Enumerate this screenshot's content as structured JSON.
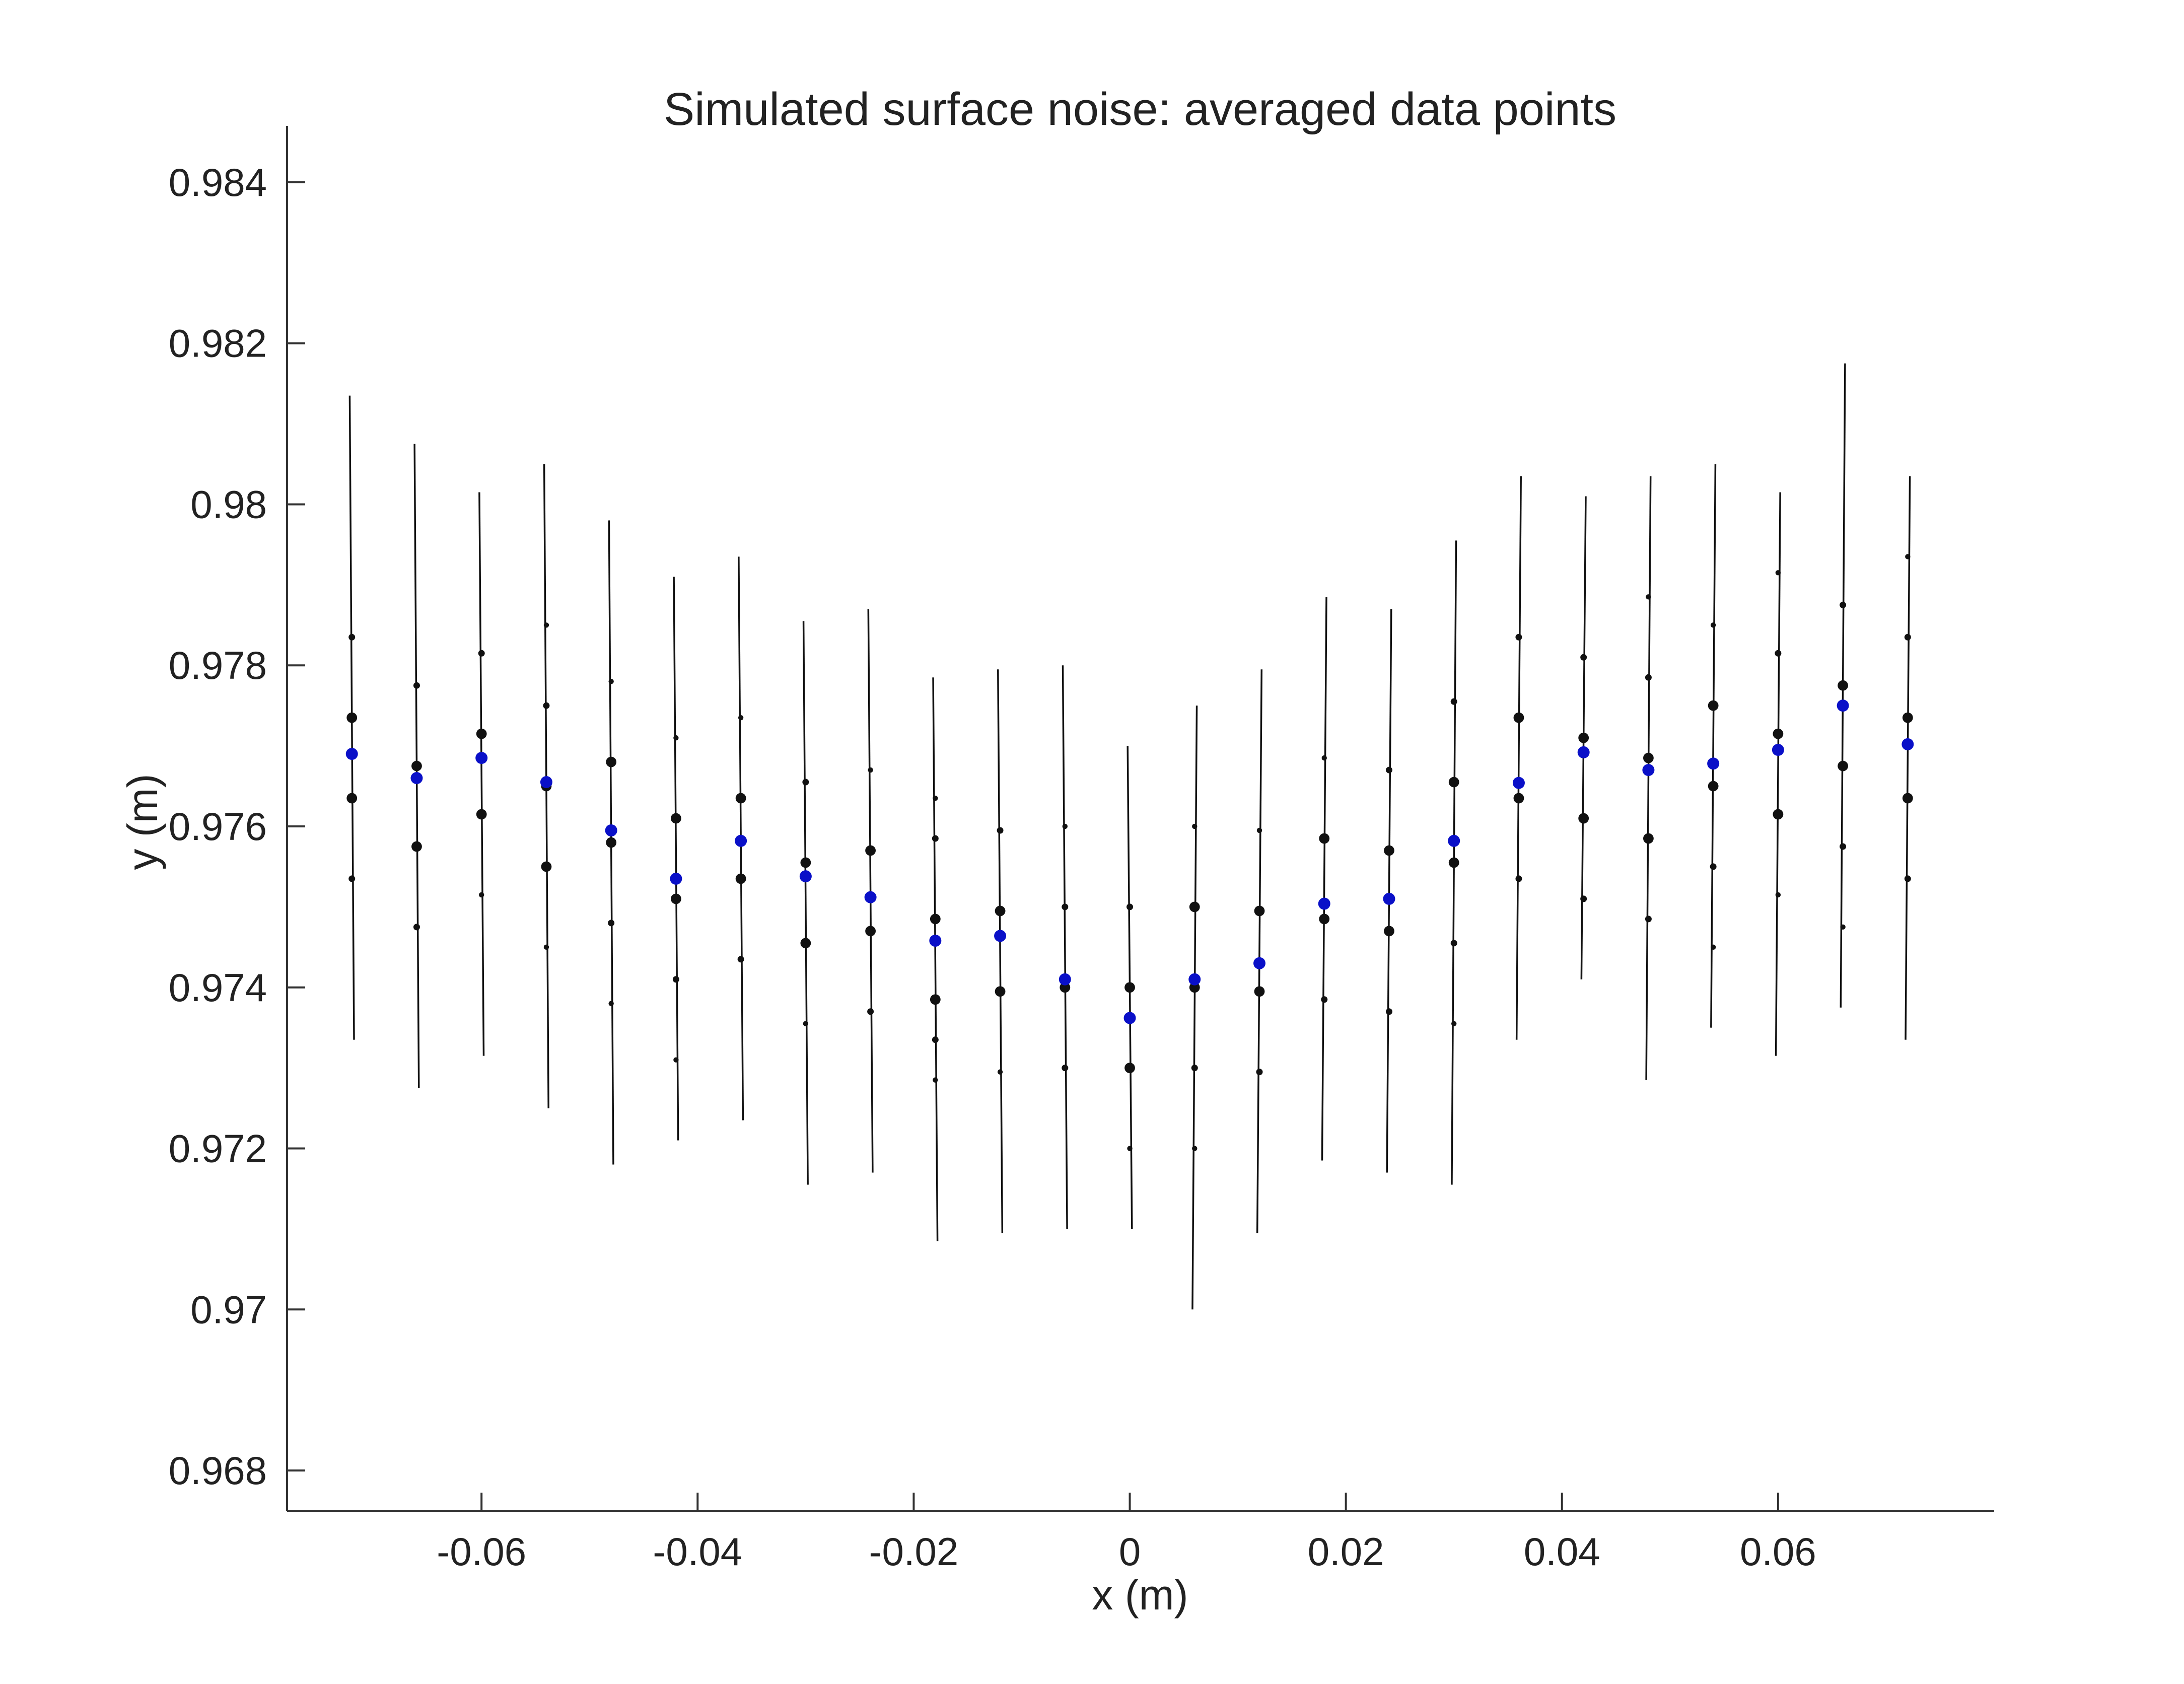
{
  "chart_data": {
    "type": "scatter",
    "title": "Simulated surface noise: averaged data points",
    "xlabel": "x (m)",
    "ylabel": "y (m)",
    "xlim": [
      -0.078,
      0.08
    ],
    "ylim": [
      0.9675,
      0.9847
    ],
    "xticks": [
      -0.06,
      -0.04,
      -0.02,
      0,
      0.02,
      0.04,
      0.06
    ],
    "xtick_labels": [
      "-0.06",
      "-0.04",
      "-0.02",
      "0",
      "0.02",
      "0.04",
      "0.06"
    ],
    "yticks": [
      0.968,
      0.97,
      0.972,
      0.974,
      0.976,
      0.978,
      0.98,
      0.982,
      0.984
    ],
    "ytick_labels": [
      "0.968",
      "0.97",
      "0.972",
      "0.974",
      "0.976",
      "0.978",
      "0.98",
      "0.982",
      "0.984"
    ],
    "grid": false,
    "colors": {
      "samples": "#111111",
      "averaged": "#0a10c8"
    },
    "series": [
      {
        "role": "ray-lines",
        "lines": [
          {
            "x0": -0.0722,
            "y0": 0.98135,
            "x1": -0.0718,
            "y1": 0.97335
          },
          {
            "x0": -0.0662,
            "y0": 0.98075,
            "x1": -0.0658,
            "y1": 0.97275
          },
          {
            "x0": -0.0602,
            "y0": 0.98015,
            "x1": -0.0598,
            "y1": 0.97315
          },
          {
            "x0": -0.0542,
            "y0": 0.9805,
            "x1": -0.0538,
            "y1": 0.9725
          },
          {
            "x0": -0.0482,
            "y0": 0.9798,
            "x1": -0.0478,
            "y1": 0.9718
          },
          {
            "x0": -0.0422,
            "y0": 0.9791,
            "x1": -0.0418,
            "y1": 0.9721
          },
          {
            "x0": -0.0362,
            "y0": 0.97935,
            "x1": -0.0358,
            "y1": 0.97235
          },
          {
            "x0": -0.0302,
            "y0": 0.97855,
            "x1": -0.0298,
            "y1": 0.97155
          },
          {
            "x0": -0.0242,
            "y0": 0.9787,
            "x1": -0.0238,
            "y1": 0.9717
          },
          {
            "x0": -0.0182,
            "y0": 0.97785,
            "x1": -0.0178,
            "y1": 0.97085
          },
          {
            "x0": -0.0122,
            "y0": 0.97795,
            "x1": -0.0118,
            "y1": 0.97095
          },
          {
            "x0": -0.0062,
            "y0": 0.978,
            "x1": -0.0058,
            "y1": 0.971
          },
          {
            "x0": -0.0002,
            "y0": 0.977,
            "x1": 0.0002,
            "y1": 0.971
          },
          {
            "x0": 0.0062,
            "y0": 0.9775,
            "x1": 0.0058,
            "y1": 0.97
          },
          {
            "x0": 0.0122,
            "y0": 0.97795,
            "x1": 0.0118,
            "y1": 0.97095
          },
          {
            "x0": 0.0182,
            "y0": 0.97885,
            "x1": 0.0178,
            "y1": 0.97185
          },
          {
            "x0": 0.0242,
            "y0": 0.9787,
            "x1": 0.0238,
            "y1": 0.9717
          },
          {
            "x0": 0.0302,
            "y0": 0.97955,
            "x1": 0.0298,
            "y1": 0.97155
          },
          {
            "x0": 0.0362,
            "y0": 0.98035,
            "x1": 0.0358,
            "y1": 0.97335
          },
          {
            "x0": 0.0422,
            "y0": 0.9801,
            "x1": 0.0418,
            "y1": 0.9741
          },
          {
            "x0": 0.0482,
            "y0": 0.98035,
            "x1": 0.0478,
            "y1": 0.97285
          },
          {
            "x0": 0.0542,
            "y0": 0.9805,
            "x1": 0.0538,
            "y1": 0.9735
          },
          {
            "x0": 0.0602,
            "y0": 0.98015,
            "x1": 0.0598,
            "y1": 0.97315
          },
          {
            "x0": 0.0662,
            "y0": 0.98175,
            "x1": 0.0658,
            "y1": 0.97375
          },
          {
            "x0": 0.0722,
            "y0": 0.98035,
            "x1": 0.0718,
            "y1": 0.97335
          }
        ]
      },
      {
        "role": "samples",
        "points": [
          {
            "x": -0.072,
            "y": 0.97835,
            "s": 5
          },
          {
            "x": -0.072,
            "y": 0.97735,
            "s": 8
          },
          {
            "x": -0.072,
            "y": 0.97635,
            "s": 8
          },
          {
            "x": -0.072,
            "y": 0.97535,
            "s": 5
          },
          {
            "x": -0.066,
            "y": 0.97775,
            "s": 5
          },
          {
            "x": -0.066,
            "y": 0.97675,
            "s": 8
          },
          {
            "x": -0.066,
            "y": 0.97575,
            "s": 8
          },
          {
            "x": -0.066,
            "y": 0.97475,
            "s": 5
          },
          {
            "x": -0.06,
            "y": 0.97815,
            "s": 5
          },
          {
            "x": -0.06,
            "y": 0.97715,
            "s": 8
          },
          {
            "x": -0.06,
            "y": 0.97615,
            "s": 8
          },
          {
            "x": -0.06,
            "y": 0.97515,
            "s": 4
          },
          {
            "x": -0.054,
            "y": 0.9785,
            "s": 4
          },
          {
            "x": -0.054,
            "y": 0.9775,
            "s": 5
          },
          {
            "x": -0.054,
            "y": 0.9765,
            "s": 8
          },
          {
            "x": -0.054,
            "y": 0.9755,
            "s": 8
          },
          {
            "x": -0.054,
            "y": 0.9745,
            "s": 4
          },
          {
            "x": -0.048,
            "y": 0.9778,
            "s": 4
          },
          {
            "x": -0.048,
            "y": 0.9768,
            "s": 8
          },
          {
            "x": -0.048,
            "y": 0.9758,
            "s": 8
          },
          {
            "x": -0.048,
            "y": 0.9748,
            "s": 5
          },
          {
            "x": -0.048,
            "y": 0.9738,
            "s": 4
          },
          {
            "x": -0.042,
            "y": 0.9771,
            "s": 4
          },
          {
            "x": -0.042,
            "y": 0.9761,
            "s": 8
          },
          {
            "x": -0.042,
            "y": 0.9751,
            "s": 8
          },
          {
            "x": -0.042,
            "y": 0.9741,
            "s": 5
          },
          {
            "x": -0.042,
            "y": 0.9731,
            "s": 4
          },
          {
            "x": -0.036,
            "y": 0.97735,
            "s": 4
          },
          {
            "x": -0.036,
            "y": 0.97635,
            "s": 8
          },
          {
            "x": -0.036,
            "y": 0.97535,
            "s": 8
          },
          {
            "x": -0.036,
            "y": 0.97435,
            "s": 5
          },
          {
            "x": -0.03,
            "y": 0.97655,
            "s": 5
          },
          {
            "x": -0.03,
            "y": 0.97555,
            "s": 8
          },
          {
            "x": -0.03,
            "y": 0.97455,
            "s": 8
          },
          {
            "x": -0.03,
            "y": 0.97355,
            "s": 4
          },
          {
            "x": -0.024,
            "y": 0.9767,
            "s": 4
          },
          {
            "x": -0.024,
            "y": 0.9757,
            "s": 8
          },
          {
            "x": -0.024,
            "y": 0.9747,
            "s": 8
          },
          {
            "x": -0.024,
            "y": 0.9737,
            "s": 5
          },
          {
            "x": -0.018,
            "y": 0.97635,
            "s": 4
          },
          {
            "x": -0.018,
            "y": 0.97585,
            "s": 5
          },
          {
            "x": -0.018,
            "y": 0.97485,
            "s": 8
          },
          {
            "x": -0.018,
            "y": 0.97385,
            "s": 8
          },
          {
            "x": -0.018,
            "y": 0.97335,
            "s": 5
          },
          {
            "x": -0.018,
            "y": 0.97285,
            "s": 4
          },
          {
            "x": -0.012,
            "y": 0.97595,
            "s": 5
          },
          {
            "x": -0.012,
            "y": 0.97495,
            "s": 8
          },
          {
            "x": -0.012,
            "y": 0.97395,
            "s": 8
          },
          {
            "x": -0.012,
            "y": 0.97295,
            "s": 4
          },
          {
            "x": -0.006,
            "y": 0.976,
            "s": 4
          },
          {
            "x": -0.006,
            "y": 0.975,
            "s": 5
          },
          {
            "x": -0.006,
            "y": 0.974,
            "s": 8
          },
          {
            "x": -0.006,
            "y": 0.973,
            "s": 5
          },
          {
            "x": 0,
            "y": 0.975,
            "s": 5
          },
          {
            "x": 0,
            "y": 0.974,
            "s": 8
          },
          {
            "x": 0,
            "y": 0.973,
            "s": 8
          },
          {
            "x": 0,
            "y": 0.972,
            "s": 4
          },
          {
            "x": 0.006,
            "y": 0.976,
            "s": 4
          },
          {
            "x": 0.006,
            "y": 0.975,
            "s": 8
          },
          {
            "x": 0.006,
            "y": 0.974,
            "s": 8
          },
          {
            "x": 0.006,
            "y": 0.973,
            "s": 5
          },
          {
            "x": 0.006,
            "y": 0.972,
            "s": 4
          },
          {
            "x": 0.012,
            "y": 0.97595,
            "s": 4
          },
          {
            "x": 0.012,
            "y": 0.97495,
            "s": 8
          },
          {
            "x": 0.012,
            "y": 0.97395,
            "s": 8
          },
          {
            "x": 0.012,
            "y": 0.97295,
            "s": 5
          },
          {
            "x": 0.018,
            "y": 0.97685,
            "s": 4
          },
          {
            "x": 0.018,
            "y": 0.97585,
            "s": 8
          },
          {
            "x": 0.018,
            "y": 0.97485,
            "s": 8
          },
          {
            "x": 0.018,
            "y": 0.97385,
            "s": 5
          },
          {
            "x": 0.024,
            "y": 0.9767,
            "s": 5
          },
          {
            "x": 0.024,
            "y": 0.9757,
            "s": 8
          },
          {
            "x": 0.024,
            "y": 0.9747,
            "s": 8
          },
          {
            "x": 0.024,
            "y": 0.9737,
            "s": 5
          },
          {
            "x": 0.03,
            "y": 0.97755,
            "s": 5
          },
          {
            "x": 0.03,
            "y": 0.97655,
            "s": 8
          },
          {
            "x": 0.03,
            "y": 0.97555,
            "s": 8
          },
          {
            "x": 0.03,
            "y": 0.97455,
            "s": 5
          },
          {
            "x": 0.03,
            "y": 0.97355,
            "s": 4
          },
          {
            "x": 0.036,
            "y": 0.97835,
            "s": 5
          },
          {
            "x": 0.036,
            "y": 0.97735,
            "s": 8
          },
          {
            "x": 0.036,
            "y": 0.97635,
            "s": 8
          },
          {
            "x": 0.036,
            "y": 0.97535,
            "s": 5
          },
          {
            "x": 0.042,
            "y": 0.9781,
            "s": 5
          },
          {
            "x": 0.042,
            "y": 0.9771,
            "s": 8
          },
          {
            "x": 0.042,
            "y": 0.9761,
            "s": 8
          },
          {
            "x": 0.042,
            "y": 0.9751,
            "s": 5
          },
          {
            "x": 0.048,
            "y": 0.97885,
            "s": 4
          },
          {
            "x": 0.048,
            "y": 0.97785,
            "s": 5
          },
          {
            "x": 0.048,
            "y": 0.97685,
            "s": 8
          },
          {
            "x": 0.048,
            "y": 0.97585,
            "s": 8
          },
          {
            "x": 0.048,
            "y": 0.97485,
            "s": 5
          },
          {
            "x": 0.054,
            "y": 0.9785,
            "s": 4
          },
          {
            "x": 0.054,
            "y": 0.9775,
            "s": 8
          },
          {
            "x": 0.054,
            "y": 0.9765,
            "s": 8
          },
          {
            "x": 0.054,
            "y": 0.9755,
            "s": 5
          },
          {
            "x": 0.054,
            "y": 0.9745,
            "s": 4
          },
          {
            "x": 0.06,
            "y": 0.97915,
            "s": 4
          },
          {
            "x": 0.06,
            "y": 0.97815,
            "s": 5
          },
          {
            "x": 0.06,
            "y": 0.97715,
            "s": 8
          },
          {
            "x": 0.06,
            "y": 0.97615,
            "s": 8
          },
          {
            "x": 0.06,
            "y": 0.97515,
            "s": 4
          },
          {
            "x": 0.066,
            "y": 0.97875,
            "s": 5
          },
          {
            "x": 0.066,
            "y": 0.97775,
            "s": 8
          },
          {
            "x": 0.066,
            "y": 0.97675,
            "s": 8
          },
          {
            "x": 0.066,
            "y": 0.97575,
            "s": 5
          },
          {
            "x": 0.066,
            "y": 0.97475,
            "s": 4
          },
          {
            "x": 0.072,
            "y": 0.97935,
            "s": 4
          },
          {
            "x": 0.072,
            "y": 0.97835,
            "s": 5
          },
          {
            "x": 0.072,
            "y": 0.97735,
            "s": 8
          },
          {
            "x": 0.072,
            "y": 0.97635,
            "s": 8
          },
          {
            "x": 0.072,
            "y": 0.97535,
            "s": 5
          }
        ]
      },
      {
        "role": "averaged",
        "x": [
          -0.072,
          -0.066,
          -0.06,
          -0.054,
          -0.048,
          -0.042,
          -0.036,
          -0.03,
          -0.024,
          -0.018,
          -0.012,
          -0.006,
          0,
          0.006,
          0.012,
          0.018,
          0.024,
          0.03,
          0.036,
          0.042,
          0.048,
          0.054,
          0.06,
          0.066,
          0.072
        ],
        "y": [
          0.9769,
          0.9766,
          0.97685,
          0.97655,
          0.97595,
          0.97535,
          0.97582,
          0.97538,
          0.97512,
          0.97458,
          0.97464,
          0.9741,
          0.97362,
          0.9741,
          0.9743,
          0.97504,
          0.9751,
          0.97582,
          0.97654,
          0.97692,
          0.9767,
          0.97678,
          0.97695,
          0.9775,
          0.97702
        ]
      }
    ]
  }
}
